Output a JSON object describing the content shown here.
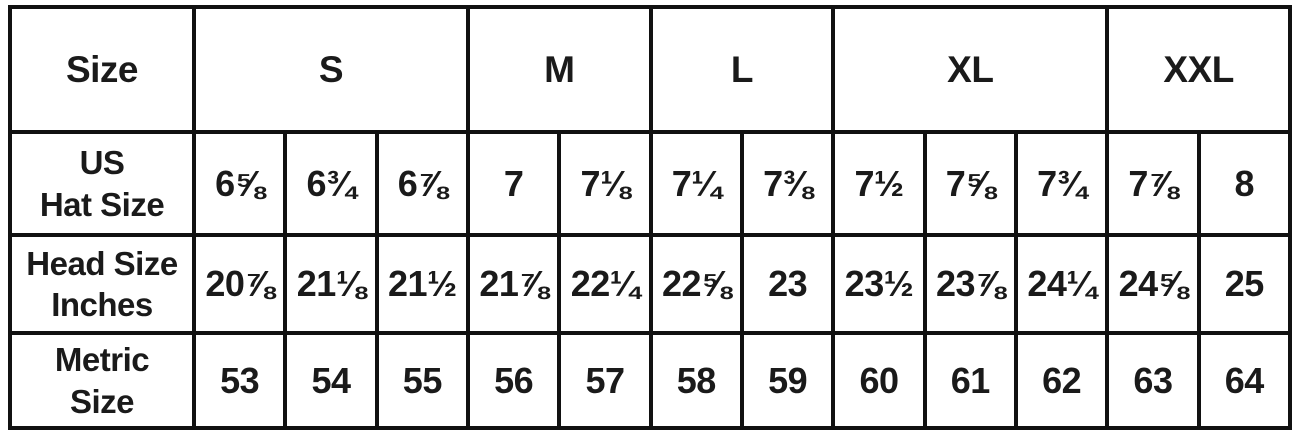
{
  "chart_data": {
    "type": "table",
    "corner_header": "Size",
    "size_groups": [
      {
        "label": "S",
        "colspan": 3
      },
      {
        "label": "M",
        "colspan": 2
      },
      {
        "label": "L",
        "colspan": 2
      },
      {
        "label": "XL",
        "colspan": 3
      },
      {
        "label": "XXL",
        "colspan": 2
      }
    ],
    "rows": [
      {
        "label_lines": [
          "US",
          "Hat Size"
        ],
        "values": [
          "6⅝",
          "6¾",
          "6⅞",
          "7",
          "7⅛",
          "7¼",
          "7⅜",
          "7½",
          "7⅝",
          "7¾",
          "7⅞",
          "8"
        ]
      },
      {
        "label_lines": [
          "Head Size",
          "Inches"
        ],
        "values": [
          "20⅞",
          "21⅛",
          "21½",
          "21⅞",
          "22¼",
          "22⅝",
          "23",
          "23½",
          "23⅞",
          "24¼",
          "24⅝",
          "25"
        ]
      },
      {
        "label_lines": [
          "Metric",
          "Size"
        ],
        "values": [
          "53",
          "54",
          "55",
          "56",
          "57",
          "58",
          "59",
          "60",
          "61",
          "62",
          "63",
          "64"
        ]
      }
    ],
    "layout_hints": {
      "columns": 13,
      "grid": "on",
      "border_style": "solid"
    }
  },
  "colors": {
    "border": "#111111",
    "text": "#1a1a1a",
    "background": "#ffffff"
  }
}
